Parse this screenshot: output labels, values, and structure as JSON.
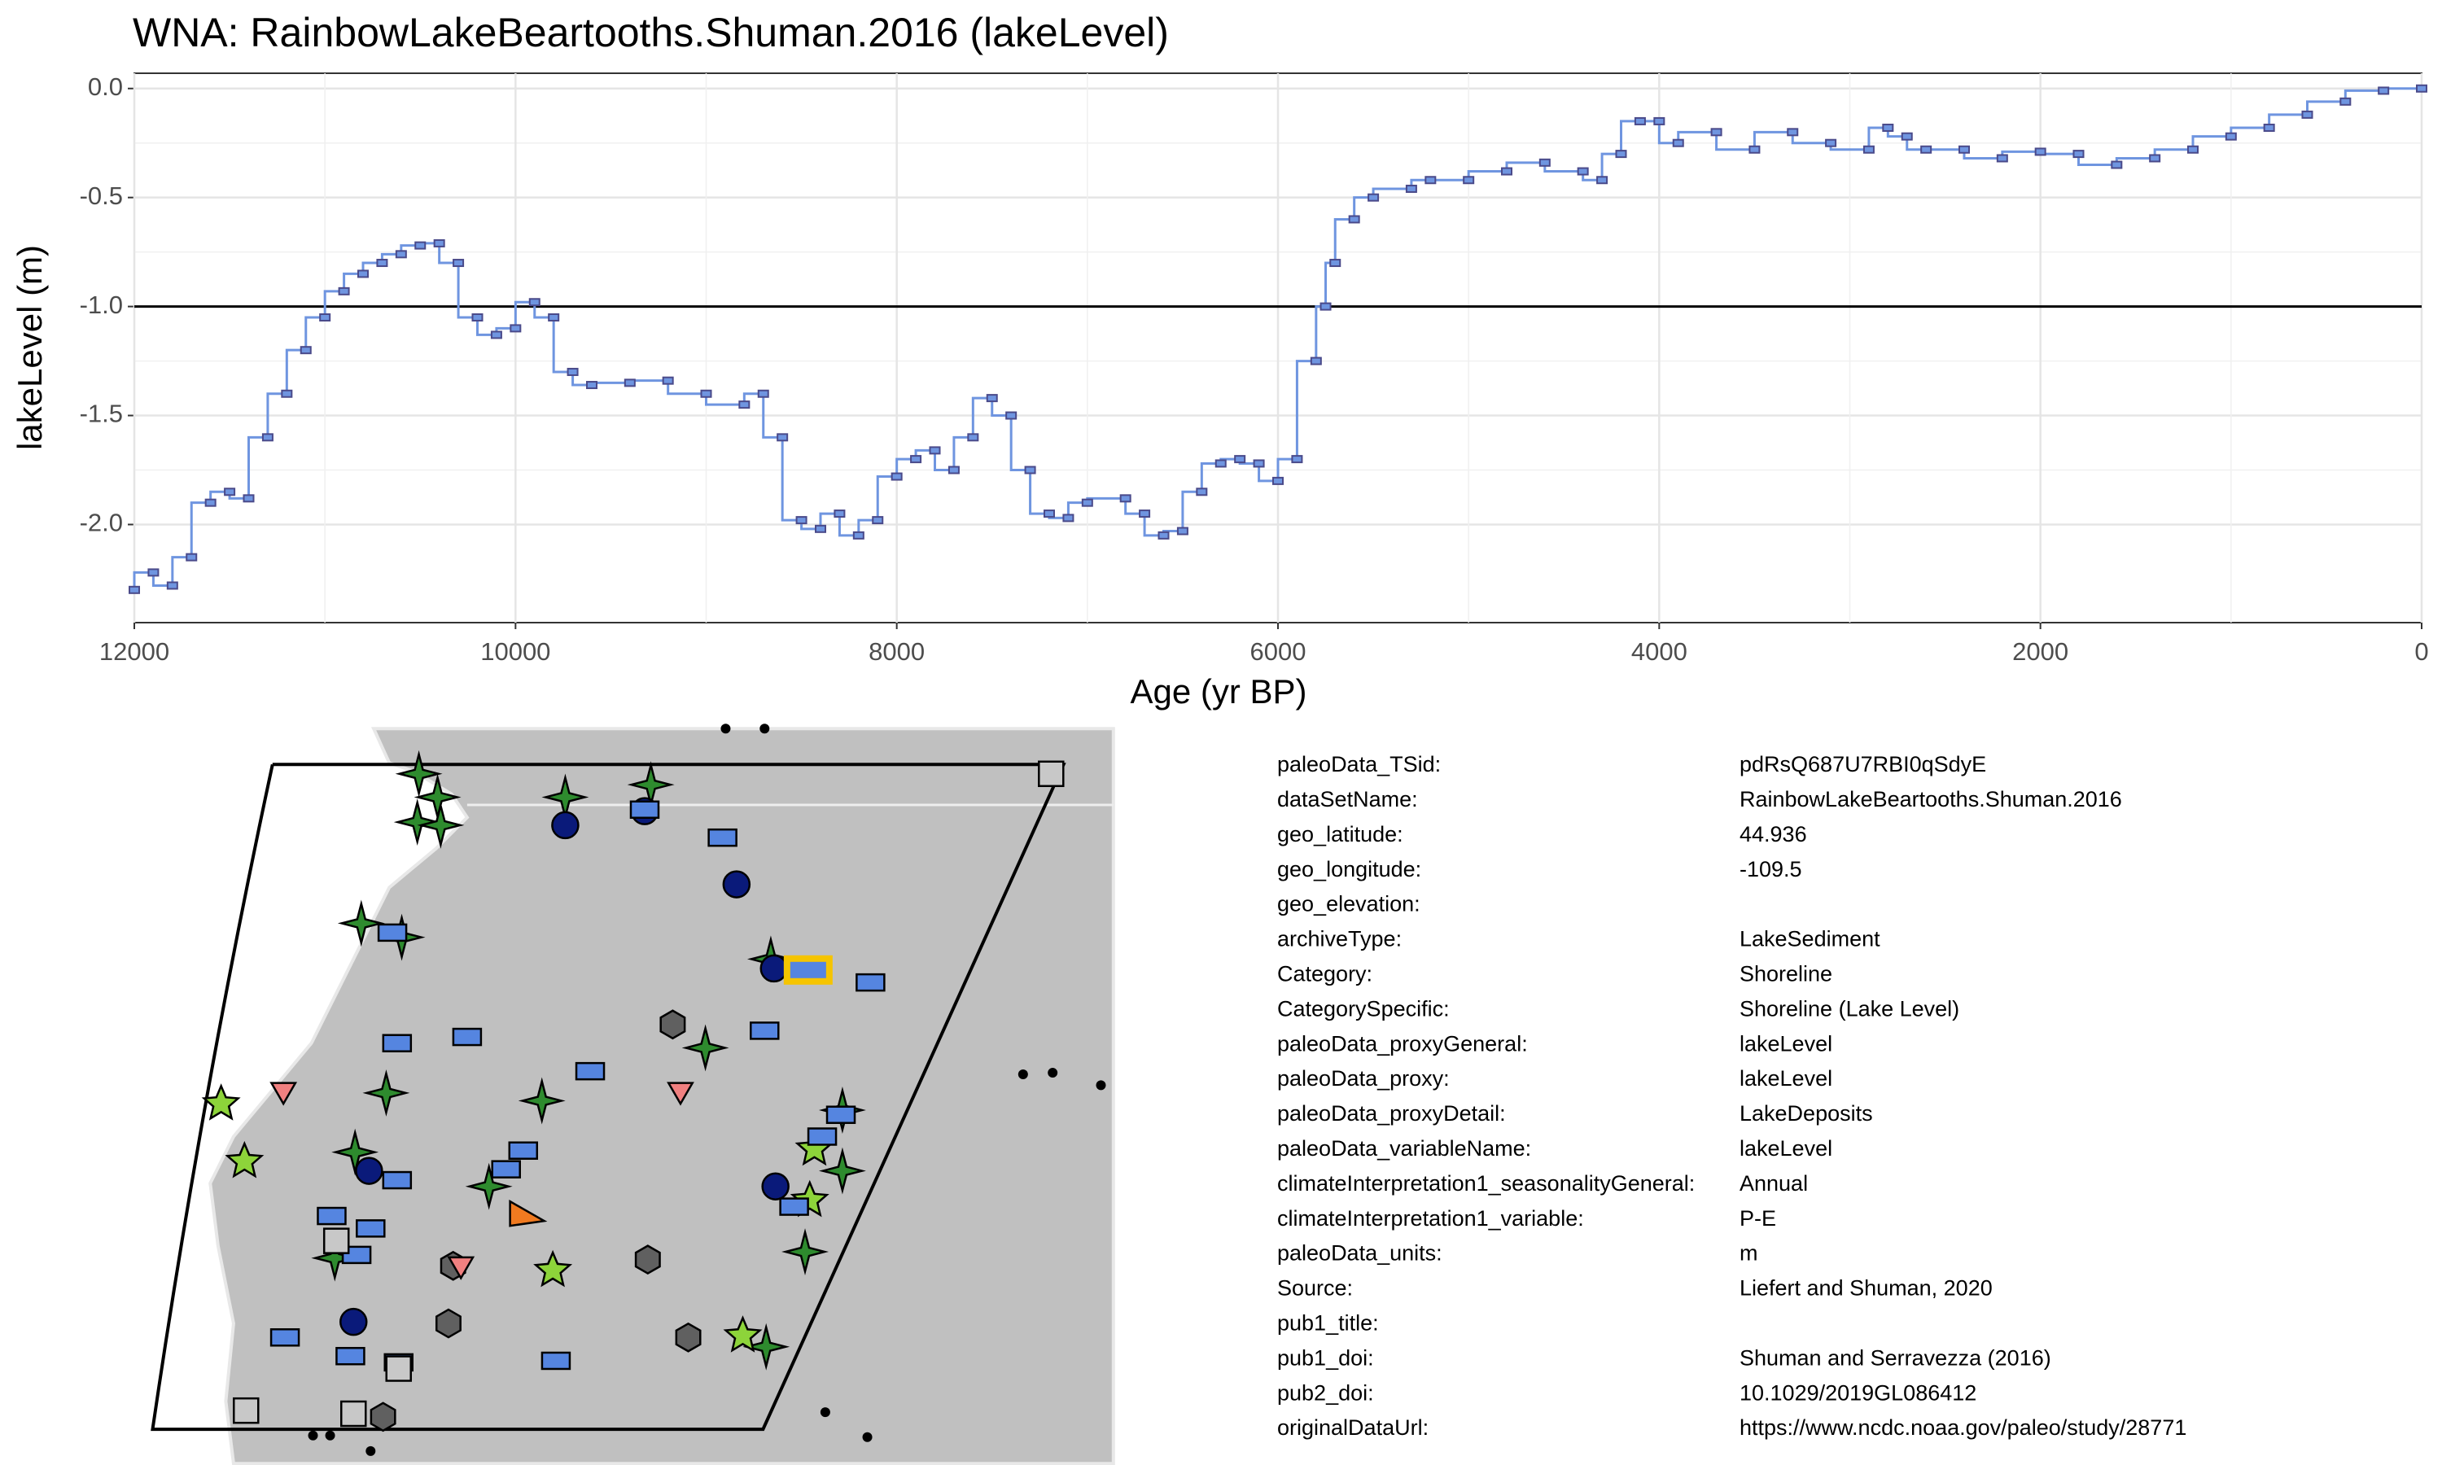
{
  "chart_data": {
    "type": "line",
    "title": "WNA: RainbowLakeBeartooths.Shuman.2016 (lakeLevel)",
    "x_label": "Age (yr BP)",
    "y_label": "lakeLevel (m)",
    "x": [
      12000,
      11900,
      11800,
      11700,
      11600,
      11500,
      11400,
      11300,
      11200,
      11100,
      11000,
      10900,
      10800,
      10700,
      10600,
      10500,
      10400,
      10300,
      10200,
      10100,
      10000,
      9900,
      9800,
      9700,
      9600,
      9400,
      9200,
      9000,
      8800,
      8700,
      8600,
      8500,
      8400,
      8300,
      8200,
      8100,
      8000,
      7900,
      7800,
      7700,
      7600,
      7500,
      7400,
      7300,
      7200,
      7100,
      7000,
      6800,
      6700,
      6600,
      6500,
      6400,
      6300,
      6200,
      6100,
      6000,
      5900,
      5800,
      5750,
      5700,
      5600,
      5500,
      5300,
      5200,
      5000,
      4800,
      4600,
      4400,
      4300,
      4200,
      4100,
      4000,
      3900,
      3700,
      3500,
      3300,
      3100,
      2900,
      2800,
      2700,
      2600,
      2400,
      2200,
      2000,
      1800,
      1600,
      1400,
      1200,
      1000,
      800,
      600,
      400,
      200,
      0
    ],
    "values": [
      -2.3,
      -2.22,
      -2.28,
      -2.15,
      -1.9,
      -1.85,
      -1.88,
      -1.6,
      -1.4,
      -1.2,
      -1.05,
      -0.93,
      -0.85,
      -0.8,
      -0.76,
      -0.72,
      -0.71,
      -0.8,
      -1.05,
      -1.13,
      -1.1,
      -0.98,
      -1.05,
      -1.3,
      -1.36,
      -1.35,
      -1.34,
      -1.4,
      -1.45,
      -1.4,
      -1.6,
      -1.98,
      -2.02,
      -1.95,
      -2.05,
      -1.98,
      -1.78,
      -1.7,
      -1.66,
      -1.75,
      -1.6,
      -1.42,
      -1.5,
      -1.75,
      -1.95,
      -1.97,
      -1.9,
      -1.88,
      -1.95,
      -2.05,
      -2.03,
      -1.85,
      -1.72,
      -1.7,
      -1.72,
      -1.8,
      -1.7,
      -1.25,
      -1.0,
      -0.8,
      -0.6,
      -0.5,
      -0.46,
      -0.42,
      -0.42,
      -0.38,
      -0.34,
      -0.38,
      -0.42,
      -0.3,
      -0.15,
      -0.15,
      -0.25,
      -0.2,
      -0.28,
      -0.2,
      -0.25,
      -0.28,
      -0.18,
      -0.22,
      -0.28,
      -0.28,
      -0.32,
      -0.29,
      -0.3,
      -0.35,
      -0.32,
      -0.28,
      -0.22,
      -0.18,
      -0.12,
      -0.06,
      -0.01,
      0
    ],
    "color": "#6f95e0",
    "marker_color": "#4a4a8a",
    "xlim": [
      12000,
      0
    ],
    "xticks": [
      12000,
      10000,
      8000,
      6000,
      4000,
      2000,
      0
    ],
    "ylim": [
      -2.45,
      0.07
    ],
    "yticks": [
      {
        "value": -2,
        "label": "-2.0"
      },
      {
        "value": -1.5,
        "label": "-1.5"
      },
      {
        "value": -1,
        "label": "-1.0"
      },
      {
        "value": -0.5,
        "label": "-0.5"
      },
      {
        "value": 0,
        "label": "0.0"
      }
    ],
    "hline": -1,
    "grid": true
  },
  "metadata": [
    [
      "paleoData_TSid:",
      "pdRsQ687U7RBI0qSdyE"
    ],
    [
      "dataSetName:",
      "RainbowLakeBeartooths.Shuman.2016"
    ],
    [
      "geo_latitude:",
      "44.936"
    ],
    [
      "geo_longitude:",
      "-109.5"
    ],
    [
      "geo_elevation:"
    ],
    [
      "archiveType:",
      "LakeSediment"
    ],
    [
      "Category:",
      "Shoreline"
    ],
    [
      "CategorySpecific:",
      "Shoreline (Lake Level)"
    ],
    [
      "paleoData_proxyGeneral:",
      "lakeLevel"
    ],
    [
      "paleoData_proxy:",
      "lakeLevel"
    ],
    [
      "paleoData_proxyDetail:",
      "LakeDeposits"
    ],
    [
      "paleoData_variableName:",
      "lakeLevel"
    ],
    [
      "climateInterpretation1_seasonalityGeneral:",
      "Annual"
    ],
    [
      "climateInterpretation1_variable:",
      "P-E"
    ],
    [
      "paleoData_units:",
      "m"
    ],
    [
      "Source:",
      "Liefert and Shuman, 2020"
    ],
    [
      "pub1_title:"
    ],
    [
      "pub1_doi:",
      "Shuman and Serravezza (2016)"
    ],
    [
      "pub2_doi:",
      "10.1029/2019GL086412"
    ],
    [
      "originalDataUrl:",
      "https://www.ncdc.noaa.gov/paleo/study/28771"
    ]
  ]
}
